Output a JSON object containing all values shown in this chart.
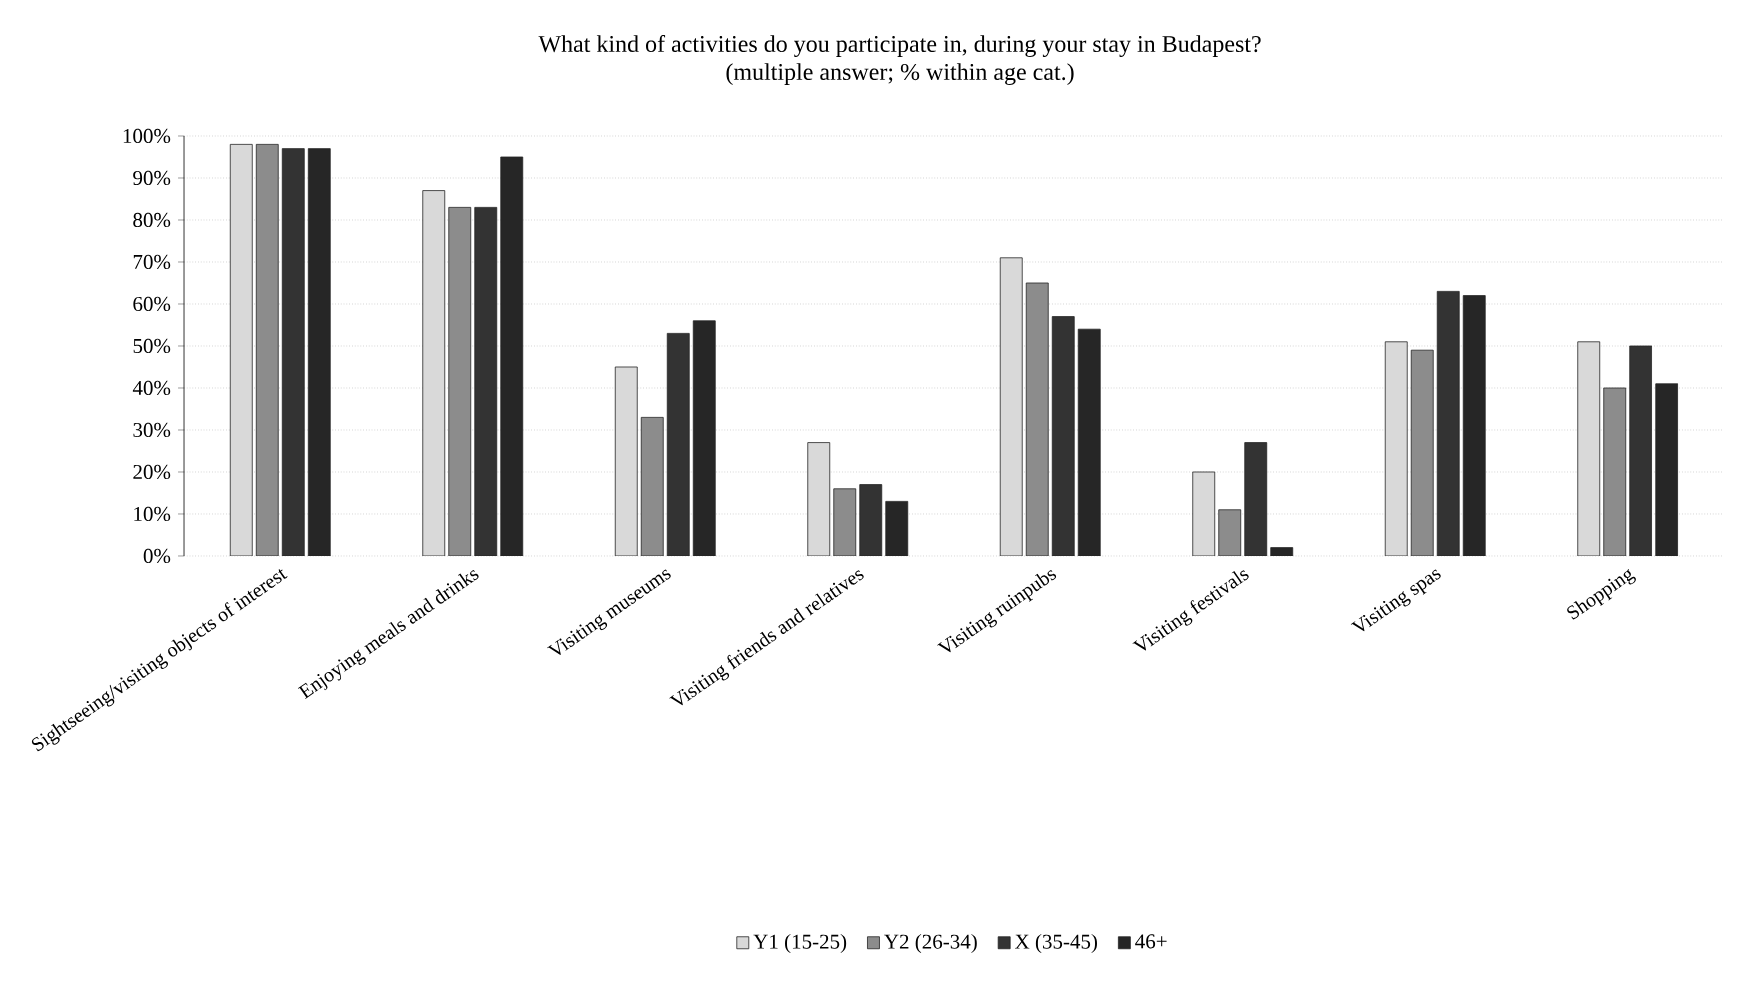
{
  "chart_data": {
    "type": "bar",
    "title": "What kind of activities do you participate in, during your stay in Budapest?",
    "subtitle": "(multiple answer; % within age cat.)",
    "categories": [
      "Sightseeing/visiting objects of interest",
      "Enjoying meals and drinks",
      "Visiting museums",
      "Visiting friends and relatives",
      "Visiting ruinpubs",
      "Visiting festivals",
      "Visiting spas",
      "Shopping"
    ],
    "series": [
      {
        "name": "Y1 (15-25)",
        "color": "#d9d9d9",
        "values": [
          98,
          87,
          45,
          27,
          71,
          20,
          51,
          51
        ]
      },
      {
        "name": "Y2 (26-34)",
        "color": "#8c8c8c",
        "values": [
          98,
          83,
          33,
          16,
          65,
          11,
          49,
          40
        ]
      },
      {
        "name": "X (35-45)",
        "color": "#333333",
        "values": [
          97,
          83,
          53,
          17,
          57,
          27,
          63,
          50
        ]
      },
      {
        "name": "46+",
        "color": "#262626",
        "values": [
          97,
          95,
          56,
          13,
          54,
          2,
          62,
          41
        ]
      }
    ],
    "ylim": [
      0,
      100
    ],
    "yticks": [
      {
        "value": 0,
        "label": "0%"
      },
      {
        "value": 10,
        "label": "10%"
      },
      {
        "value": 20,
        "label": "20%"
      },
      {
        "value": 30,
        "label": "30%"
      },
      {
        "value": 40,
        "label": "40%"
      },
      {
        "value": 50,
        "label": "50%"
      },
      {
        "value": 60,
        "label": "60%"
      },
      {
        "value": 70,
        "label": "70%"
      },
      {
        "value": 80,
        "label": "80%"
      },
      {
        "value": 90,
        "label": "90%"
      },
      {
        "value": 100,
        "label": "100%"
      }
    ],
    "grid": "y",
    "legend": "bottom"
  }
}
